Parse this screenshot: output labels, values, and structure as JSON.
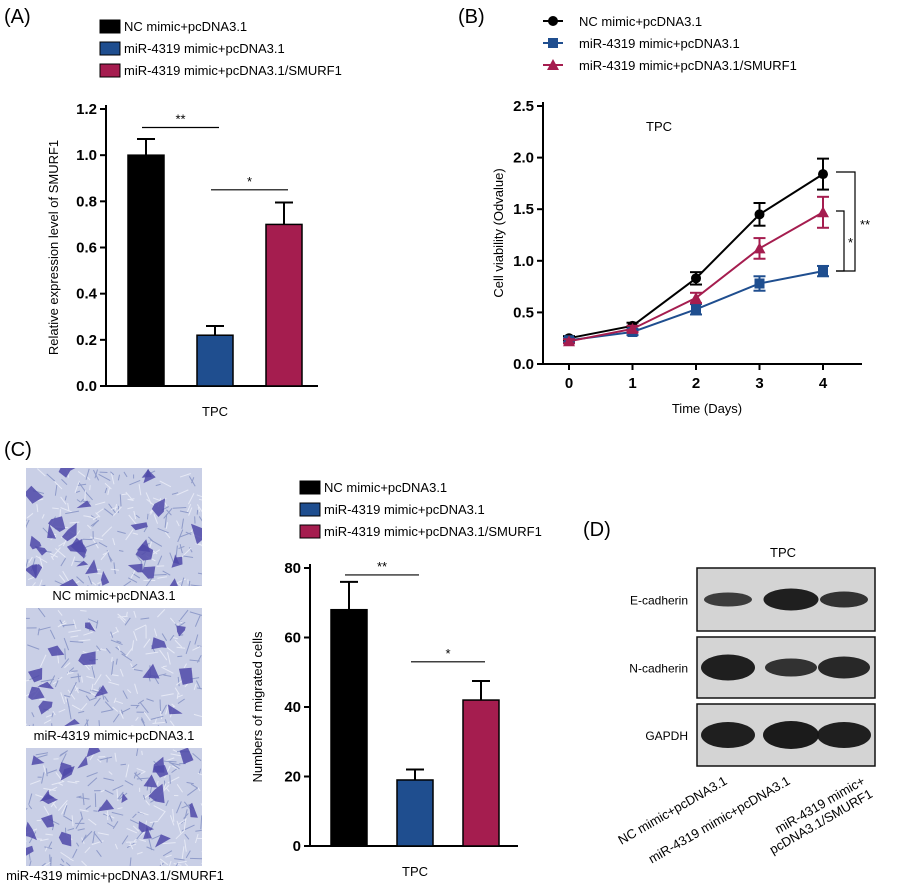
{
  "colors": {
    "nc": "#000000",
    "mir": "#1f4e8f",
    "smurf": "#a51d4f"
  },
  "panelA": {
    "label": "(A)",
    "legend": [
      "NC mimic+pcDNA3.1",
      "miR-4319 mimic+pcDNA3.1",
      "miR-4319 mimic+pcDNA3.1/SMURF1"
    ],
    "chart_data": {
      "type": "bar",
      "categories": [
        "TPC"
      ],
      "series": [
        {
          "name": "NC mimic+pcDNA3.1",
          "values": [
            1.0
          ],
          "error": [
            0.07
          ]
        },
        {
          "name": "miR-4319 mimic+pcDNA3.1",
          "values": [
            0.22
          ],
          "error": [
            0.04
          ]
        },
        {
          "name": "miR-4319 mimic+pcDNA3.1/SMURF1",
          "values": [
            0.7
          ],
          "error": [
            0.095
          ]
        }
      ],
      "ylabel": "Relative expression  level of SMURF1",
      "xlabel": "TPC",
      "ylim": [
        0,
        1.2
      ],
      "yticks": [
        "0.0",
        "0.2",
        "0.4",
        "0.6",
        "0.8",
        "1.0",
        "1.2"
      ],
      "annotations": [
        {
          "text": "**",
          "from": 0,
          "to": 1,
          "y": 1.12
        },
        {
          "text": "*",
          "from": 1,
          "to": 2,
          "y": 0.85
        }
      ]
    }
  },
  "panelB": {
    "label": "(B)",
    "legend": [
      "NC mimic+pcDNA3.1",
      "miR-4319 mimic+pcDNA3.1",
      "miR-4319 mimic+pcDNA3.1/SMURF1"
    ],
    "chart_data": {
      "type": "line",
      "title": "TPC",
      "x": [
        0,
        1,
        2,
        3,
        4
      ],
      "xticks": [
        "0",
        "1",
        "2",
        "3",
        "4"
      ],
      "series": [
        {
          "name": "NC mimic+pcDNA3.1",
          "values": [
            0.25,
            0.37,
            0.83,
            1.45,
            1.84
          ],
          "error": [
            0.02,
            0.03,
            0.06,
            0.11,
            0.15
          ]
        },
        {
          "name": "miR-4319 mimic+pcDNA3.1",
          "values": [
            0.23,
            0.31,
            0.53,
            0.78,
            0.9
          ],
          "error": [
            0.02,
            0.03,
            0.05,
            0.07,
            0.05
          ]
        },
        {
          "name": "miR-4319 mimic+pcDNA3.1/SMURF1",
          "values": [
            0.22,
            0.34,
            0.64,
            1.12,
            1.47
          ],
          "error": [
            0.02,
            0.03,
            0.05,
            0.1,
            0.15
          ]
        }
      ],
      "xlabel": "Time (Days)",
      "ylabel": "Cell viability (Odvalue)",
      "ylim": [
        0,
        2.5
      ],
      "yticks": [
        "0.0",
        "0.5",
        "1.0",
        "1.5",
        "2.0",
        "2.5"
      ],
      "annotations": [
        {
          "text": "*"
        },
        {
          "text": "**"
        }
      ]
    }
  },
  "panelC": {
    "label": "(C)",
    "image_captions": [
      "NC mimic+pcDNA3.1",
      "miR-4319 mimic+pcDNA3.1",
      "miR-4319 mimic+pcDNA3.1/SMURF1"
    ],
    "legend": [
      "NC mimic+pcDNA3.1",
      "miR-4319 mimic+pcDNA3.1",
      "miR-4319 mimic+pcDNA3.1/SMURF1"
    ],
    "chart_data": {
      "type": "bar",
      "categories": [
        "TPC"
      ],
      "series": [
        {
          "name": "NC mimic+pcDNA3.1",
          "values": [
            68
          ],
          "error": [
            8
          ]
        },
        {
          "name": "miR-4319 mimic+pcDNA3.1",
          "values": [
            19
          ],
          "error": [
            3
          ]
        },
        {
          "name": "miR-4319 mimic+pcDNA3.1/SMURF1",
          "values": [
            42
          ],
          "error": [
            5.5
          ]
        }
      ],
      "ylabel": "Numbers of migrated cells",
      "xlabel": "TPC",
      "ylim": [
        0,
        80
      ],
      "yticks": [
        "0",
        "20",
        "40",
        "60",
        "80"
      ],
      "annotations": [
        {
          "text": "**",
          "from": 0,
          "to": 1,
          "y": 78
        },
        {
          "text": "*",
          "from": 1,
          "to": 2,
          "y": 53
        }
      ]
    }
  },
  "panelD": {
    "label": "(D)",
    "title": "TPC",
    "rows": [
      "E-cadherin",
      "N-cadherin",
      "GAPDH"
    ],
    "lanes": [
      "NC mimic+pcDNA3.1",
      "miR-4319 mimic+pcDNA3.1",
      "miR-4319 mimic+\npcDNA3.1/SMURF1"
    ]
  }
}
